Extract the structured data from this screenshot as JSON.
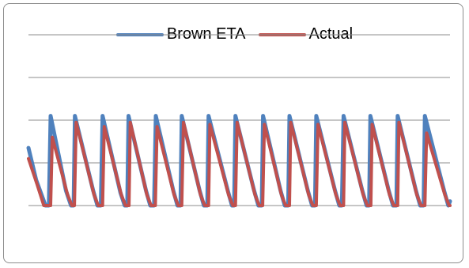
{
  "chart_data": {
    "type": "line",
    "title": "",
    "xlabel": "",
    "ylabel": "",
    "legend_position": "top-center",
    "grid": true,
    "ylim": [
      0,
      5
    ],
    "y_gridlines": [
      1,
      2,
      3,
      4,
      5
    ],
    "x_tick_labels": [],
    "y_tick_labels": [],
    "series": [
      {
        "name": "Brown ETA",
        "color": "#4f81bd",
        "points": [
          [
            0.0,
            2.35
          ],
          [
            1.8,
            1.6
          ],
          [
            4.0,
            1.0
          ],
          [
            4.8,
            1.0
          ],
          [
            5.2,
            3.1
          ],
          [
            8.8,
            1.35
          ],
          [
            10.0,
            1.0
          ],
          [
            10.6,
            1.0
          ],
          [
            10.9,
            3.1
          ],
          [
            15.2,
            1.35
          ],
          [
            16.2,
            1.0
          ],
          [
            17.0,
            1.0
          ],
          [
            17.4,
            3.1
          ],
          [
            21.6,
            1.3
          ],
          [
            22.6,
            1.0
          ],
          [
            23.2,
            1.0
          ],
          [
            23.5,
            3.1
          ],
          [
            27.6,
            1.35
          ],
          [
            28.6,
            1.0
          ],
          [
            29.5,
            1.0
          ],
          [
            29.9,
            3.1
          ],
          [
            34.0,
            1.35
          ],
          [
            35.0,
            1.0
          ],
          [
            35.7,
            1.0
          ],
          [
            36.0,
            3.1
          ],
          [
            40.2,
            1.35
          ],
          [
            41.2,
            1.0
          ],
          [
            42.0,
            1.0
          ],
          [
            42.3,
            3.1
          ],
          [
            46.8,
            1.35
          ],
          [
            47.8,
            1.0
          ],
          [
            48.3,
            1.0
          ],
          [
            48.6,
            3.1
          ],
          [
            53.0,
            1.35
          ],
          [
            54.0,
            1.0
          ],
          [
            54.8,
            1.0
          ],
          [
            55.1,
            3.1
          ],
          [
            59.2,
            1.35
          ],
          [
            60.2,
            1.0
          ],
          [
            61.0,
            1.0
          ],
          [
            61.3,
            3.1
          ],
          [
            65.6,
            1.35
          ],
          [
            66.6,
            1.0
          ],
          [
            67.3,
            1.0
          ],
          [
            67.6,
            3.1
          ],
          [
            72.0,
            1.35
          ],
          [
            73.0,
            1.0
          ],
          [
            73.6,
            1.0
          ],
          [
            74.0,
            3.1
          ],
          [
            78.4,
            1.35
          ],
          [
            79.4,
            1.0
          ],
          [
            80.0,
            1.0
          ],
          [
            80.3,
            3.1
          ],
          [
            84.6,
            1.35
          ],
          [
            85.6,
            1.0
          ],
          [
            86.4,
            1.0
          ],
          [
            86.7,
            3.1
          ],
          [
            91.0,
            1.35
          ],
          [
            92.0,
            1.0
          ],
          [
            92.8,
            1.0
          ],
          [
            93.1,
            3.1
          ],
          [
            97.6,
            1.35
          ],
          [
            98.6,
            1.0
          ],
          [
            99.0,
            1.1
          ]
        ]
      },
      {
        "name": "Actual",
        "color": "#c0504d",
        "points": [
          [
            0.0,
            2.1
          ],
          [
            2.0,
            1.5
          ],
          [
            3.6,
            1.0
          ],
          [
            5.2,
            1.0
          ],
          [
            5.6,
            2.6
          ],
          [
            9.2,
            1.25
          ],
          [
            10.2,
            1.0
          ],
          [
            10.8,
            1.0
          ],
          [
            11.2,
            2.95
          ],
          [
            15.4,
            1.25
          ],
          [
            16.4,
            1.0
          ],
          [
            17.4,
            1.0
          ],
          [
            17.8,
            2.85
          ],
          [
            21.8,
            1.25
          ],
          [
            22.8,
            1.0
          ],
          [
            23.6,
            1.0
          ],
          [
            23.9,
            2.95
          ],
          [
            27.8,
            1.25
          ],
          [
            28.8,
            1.0
          ],
          [
            29.8,
            1.0
          ],
          [
            30.2,
            2.85
          ],
          [
            34.2,
            1.25
          ],
          [
            35.2,
            1.0
          ],
          [
            36.0,
            1.0
          ],
          [
            36.4,
            2.95
          ],
          [
            40.4,
            1.25
          ],
          [
            41.4,
            1.0
          ],
          [
            42.3,
            1.0
          ],
          [
            42.6,
            2.9
          ],
          [
            47.0,
            1.25
          ],
          [
            48.0,
            1.0
          ],
          [
            48.6,
            1.0
          ],
          [
            49.0,
            2.95
          ],
          [
            53.2,
            1.25
          ],
          [
            54.2,
            1.0
          ],
          [
            55.0,
            1.0
          ],
          [
            55.4,
            2.9
          ],
          [
            59.4,
            1.25
          ],
          [
            60.4,
            1.0
          ],
          [
            61.3,
            1.0
          ],
          [
            61.6,
            2.95
          ],
          [
            65.8,
            1.25
          ],
          [
            66.8,
            1.0
          ],
          [
            67.6,
            1.0
          ],
          [
            68.0,
            2.9
          ],
          [
            72.2,
            1.25
          ],
          [
            73.2,
            1.0
          ],
          [
            74.0,
            1.0
          ],
          [
            74.3,
            2.95
          ],
          [
            78.6,
            1.25
          ],
          [
            79.6,
            1.0
          ],
          [
            80.4,
            1.0
          ],
          [
            80.7,
            2.9
          ],
          [
            84.8,
            1.25
          ],
          [
            85.8,
            1.0
          ],
          [
            86.7,
            1.0
          ],
          [
            87.0,
            2.95
          ],
          [
            91.2,
            1.25
          ],
          [
            92.2,
            1.0
          ],
          [
            93.1,
            1.0
          ],
          [
            93.5,
            2.7
          ],
          [
            97.8,
            1.25
          ],
          [
            98.8,
            1.0
          ],
          [
            99.0,
            1.0
          ]
        ]
      }
    ]
  }
}
